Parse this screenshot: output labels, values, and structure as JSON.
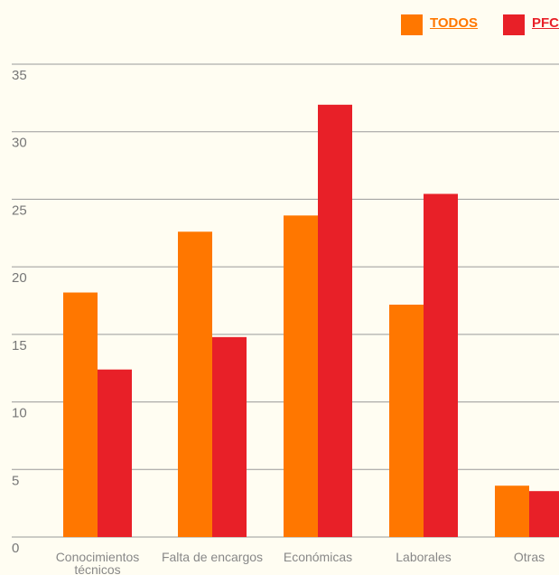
{
  "chart_data": {
    "type": "bar",
    "categories": [
      "Conocimientos técnicos",
      "Falta de encargos",
      "Económicas",
      "Laborales",
      "Otras"
    ],
    "series": [
      {
        "name": "TODOS",
        "color": "#ff7700",
        "values": [
          18.1,
          22.6,
          23.8,
          17.2,
          3.8
        ]
      },
      {
        "name": "PFC",
        "color": "#e82028",
        "values": [
          12.4,
          14.8,
          32.0,
          25.4,
          3.4
        ]
      }
    ],
    "ylim": [
      0,
      35
    ],
    "yticks": [
      0,
      5,
      10,
      15,
      20,
      25,
      30,
      35
    ],
    "grid": true
  }
}
